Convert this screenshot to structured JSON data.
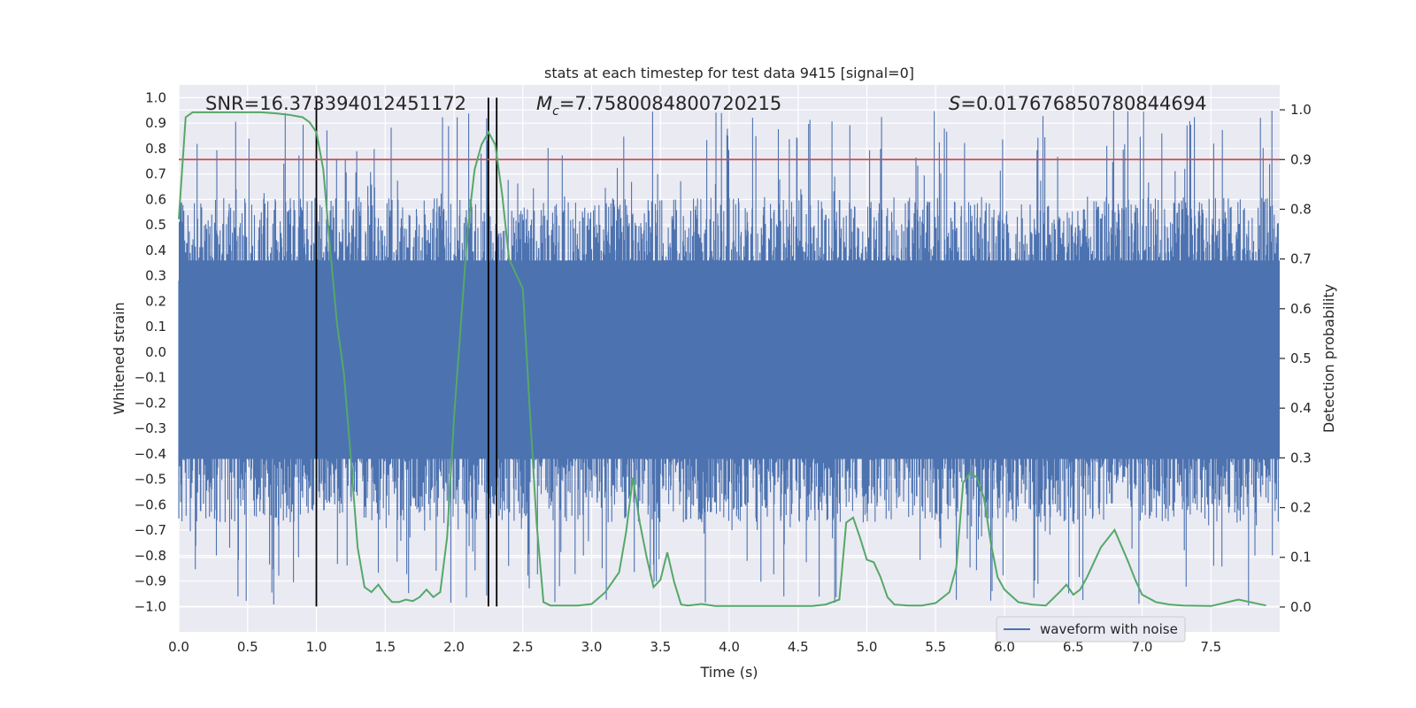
{
  "chart_data": {
    "type": "line",
    "title": "stats at each timestep for test data 9415 [signal=0]",
    "xlabel": "Time (s)",
    "ylabel": "Whitened strain",
    "y2label": "Detection probability",
    "xlim": [
      0.0,
      8.0
    ],
    "ylim": [
      -1.1,
      1.05
    ],
    "y2lim": [
      -0.05,
      1.05
    ],
    "xticks": [
      "0.0",
      "0.5",
      "1.0",
      "1.5",
      "2.0",
      "2.5",
      "3.0",
      "3.5",
      "4.0",
      "4.5",
      "5.0",
      "5.5",
      "6.0",
      "6.5",
      "7.0",
      "7.5"
    ],
    "yticks": [
      "1.0",
      "0.9",
      "0.8",
      "0.7",
      "0.6",
      "0.5",
      "0.4",
      "0.3",
      "0.2",
      "0.1",
      "0.0",
      "-0.1",
      "-0.2",
      "-0.3",
      "-0.4",
      "-0.5",
      "-0.6",
      "-0.7",
      "-0.8",
      "-0.9",
      "-1.0"
    ],
    "y2ticks": [
      "1.0",
      "0.9",
      "0.8",
      "0.7",
      "0.6",
      "0.5",
      "0.4",
      "0.3",
      "0.2",
      "0.1",
      "0.0"
    ],
    "annotations": {
      "snr": "SNR=16.373394012451172",
      "mc_symbol": "M",
      "mc_sub": "c",
      "mc_value": "=7.7580084800720215",
      "s_symbol": "S",
      "s_value": "=0.017676850780844694"
    },
    "threshold": {
      "value": 0.9,
      "axis": "right",
      "color": "#c44e52"
    },
    "vertical_lines": [
      1.0,
      2.25,
      2.31
    ],
    "vertical_line_range": [
      -1.0,
      1.0
    ],
    "legend": {
      "label": "waveform with noise",
      "location": "lower-right"
    },
    "colors": {
      "waveform": "#4c72b0",
      "probability": "#55a868",
      "threshold": "#c44e52",
      "vlines": "#000000",
      "plot_bg": "#eaeaf2"
    },
    "series": [
      {
        "name": "waveform with noise",
        "axis": "left",
        "kind": "noise",
        "duration": 8.0,
        "core_band": [
          -0.42,
          0.36
        ],
        "peak_range": [
          -1.0,
          0.95
        ]
      },
      {
        "name": "detection probability",
        "axis": "right",
        "x": [
          0.0,
          0.05,
          0.1,
          0.2,
          0.3,
          0.4,
          0.5,
          0.6,
          0.7,
          0.8,
          0.9,
          0.95,
          1.0,
          1.05,
          1.1,
          1.15,
          1.2,
          1.25,
          1.3,
          1.35,
          1.4,
          1.45,
          1.5,
          1.55,
          1.6,
          1.65,
          1.7,
          1.75,
          1.8,
          1.85,
          1.9,
          1.95,
          2.0,
          2.05,
          2.1,
          2.15,
          2.2,
          2.25,
          2.3,
          2.35,
          2.4,
          2.45,
          2.5,
          2.55,
          2.6,
          2.65,
          2.7,
          2.8,
          2.9,
          3.0,
          3.1,
          3.2,
          3.25,
          3.3,
          3.35,
          3.4,
          3.45,
          3.5,
          3.55,
          3.6,
          3.65,
          3.7,
          3.8,
          3.9,
          4.0,
          4.2,
          4.4,
          4.6,
          4.7,
          4.8,
          4.85,
          4.9,
          4.95,
          5.0,
          5.05,
          5.1,
          5.15,
          5.2,
          5.3,
          5.4,
          5.5,
          5.6,
          5.65,
          5.7,
          5.75,
          5.8,
          5.85,
          5.9,
          5.95,
          6.0,
          6.1,
          6.2,
          6.3,
          6.4,
          6.45,
          6.5,
          6.55,
          6.6,
          6.65,
          6.7,
          6.8,
          6.9,
          6.95,
          7.0,
          7.1,
          7.2,
          7.3,
          7.5,
          7.7,
          7.9
        ],
        "values": [
          0.78,
          0.985,
          0.995,
          0.995,
          0.995,
          0.995,
          0.995,
          0.995,
          0.993,
          0.99,
          0.985,
          0.975,
          0.955,
          0.88,
          0.72,
          0.57,
          0.47,
          0.3,
          0.12,
          0.04,
          0.03,
          0.045,
          0.025,
          0.01,
          0.01,
          0.015,
          0.012,
          0.02,
          0.035,
          0.02,
          0.03,
          0.14,
          0.38,
          0.57,
          0.76,
          0.88,
          0.93,
          0.955,
          0.93,
          0.83,
          0.7,
          0.67,
          0.64,
          0.4,
          0.17,
          0.01,
          0.003,
          0.003,
          0.003,
          0.006,
          0.03,
          0.07,
          0.15,
          0.26,
          0.17,
          0.1,
          0.04,
          0.055,
          0.11,
          0.05,
          0.005,
          0.003,
          0.006,
          0.002,
          0.002,
          0.002,
          0.002,
          0.002,
          0.005,
          0.015,
          0.17,
          0.18,
          0.14,
          0.095,
          0.09,
          0.06,
          0.02,
          0.005,
          0.003,
          0.003,
          0.008,
          0.03,
          0.08,
          0.25,
          0.27,
          0.26,
          0.22,
          0.13,
          0.06,
          0.035,
          0.01,
          0.005,
          0.003,
          0.03,
          0.045,
          0.025,
          0.035,
          0.06,
          0.09,
          0.12,
          0.155,
          0.09,
          0.055,
          0.025,
          0.01,
          0.005,
          0.003,
          0.002,
          0.015,
          0.003
        ]
      }
    ]
  }
}
